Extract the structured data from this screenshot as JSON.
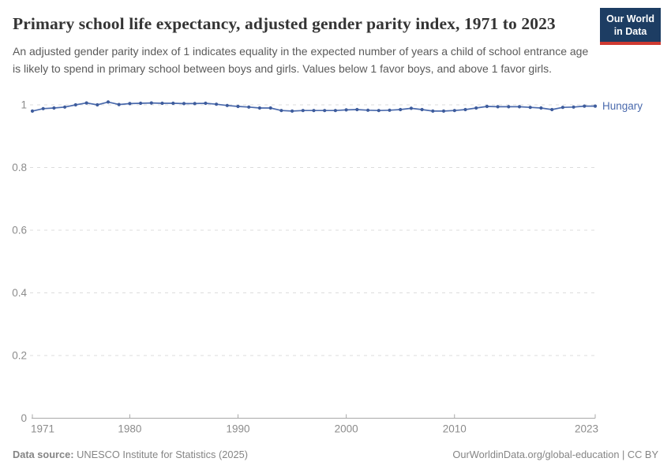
{
  "header": {
    "title": "Primary school life expectancy, adjusted gender parity index, 1971 to 2023",
    "subtitle": "An adjusted gender parity index of 1 indicates equality in the expected number of years a child of school entrance age is likely to spend in primary school between boys and girls. Values below 1 favor boys, and above 1 favor girls.",
    "logo": {
      "line1": "Our World",
      "line2": "in Data"
    }
  },
  "chart_data": {
    "type": "line",
    "title": "Primary school life expectancy, adjusted gender parity index, 1971 to 2023",
    "x": [
      1971,
      1972,
      1973,
      1974,
      1975,
      1976,
      1977,
      1978,
      1979,
      1980,
      1981,
      1982,
      1983,
      1984,
      1985,
      1986,
      1987,
      1988,
      1989,
      1990,
      1991,
      1992,
      1993,
      1994,
      1995,
      1996,
      1997,
      1998,
      1999,
      2000,
      2001,
      2002,
      2003,
      2004,
      2005,
      2006,
      2007,
      2008,
      2009,
      2010,
      2011,
      2012,
      2013,
      2014,
      2015,
      2016,
      2017,
      2018,
      2019,
      2020,
      2021,
      2022,
      2023
    ],
    "series": [
      {
        "name": "Hungary",
        "color": "#4a6aad",
        "point_color": "#3e5c9c",
        "values": [
          0.98,
          0.988,
          0.99,
          0.993,
          1.0,
          1.006,
          1.0,
          1.009,
          1.001,
          1.004,
          1.005,
          1.006,
          1.005,
          1.005,
          1.004,
          1.004,
          1.005,
          1.002,
          0.998,
          0.995,
          0.993,
          0.99,
          0.99,
          0.982,
          0.98,
          0.982,
          0.982,
          0.982,
          0.982,
          0.984,
          0.985,
          0.983,
          0.982,
          0.983,
          0.985,
          0.989,
          0.985,
          0.98,
          0.98,
          0.982,
          0.985,
          0.99,
          0.995,
          0.994,
          0.994,
          0.994,
          0.992,
          0.99,
          0.985,
          0.992,
          0.993,
          0.996,
          0.996
        ]
      }
    ],
    "x_ticks": [
      1971,
      1980,
      1990,
      2000,
      2010,
      2023
    ],
    "y_ticks": [
      0,
      0.2,
      0.4,
      0.6,
      0.8,
      1
    ],
    "xlim": [
      1971,
      2023
    ],
    "ylim": [
      0,
      1.05
    ],
    "xlabel": "",
    "ylabel": "",
    "grid": "dashed-horizontal",
    "legend": "end-of-line-label"
  },
  "footer": {
    "source_label": "Data source:",
    "source_text": " UNESCO Institute for Statistics (2025)",
    "link_text": "OurWorldinData.org/global-education | CC BY"
  },
  "colors": {
    "line": "#4a6aad",
    "point": "#3e5c9c",
    "grid": "#dcdcdc",
    "axis": "#a8a8a8",
    "tick_text": "#8c8c8c",
    "title_text": "#343434",
    "subtitle_text": "#5a5a5a",
    "footer_text": "#858585",
    "logo_bg": "#1d3d63",
    "logo_red": "#cf3a31"
  }
}
